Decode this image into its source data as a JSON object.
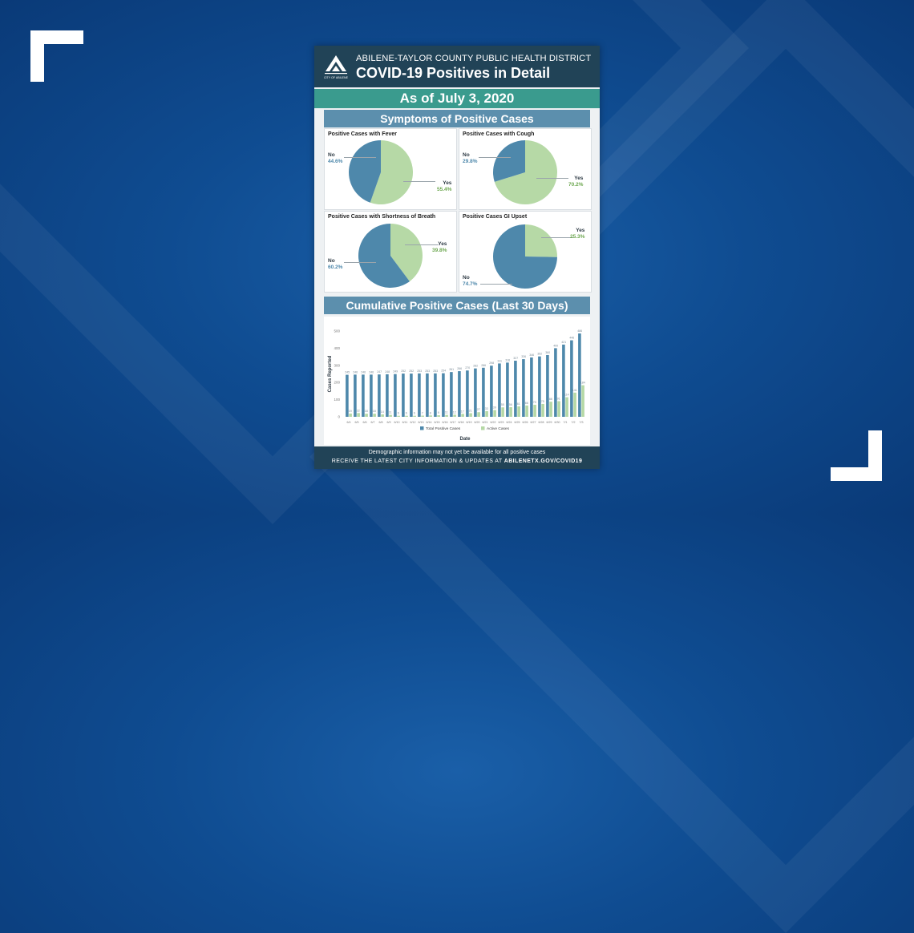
{
  "poster": {
    "org_name": "ABILENE-TAYLOR COUNTY PUBLIC HEALTH DISTRICT",
    "title": "COVID-19 Positives in Detail",
    "logo_text": "CITY OF ABILENE",
    "date_label": "As of July 3, 2020",
    "symptoms_heading": "Symptoms of Positive Cases",
    "cumulative_heading": "Cumulative Positive Cases (Last 30 Days)",
    "footer_note": "Demographic information may not yet be available for all positive cases",
    "footer_cta_prefix": "RECEIVE THE LATEST CITY INFORMATION & UPDATES AT",
    "footer_cta_url": "ABILENETX.GOV/COVID19"
  },
  "colors": {
    "background": "#0f4c91",
    "header": "#214357",
    "date_band": "#3a9b8e",
    "section_banner": "#5c8fad",
    "no_blue": "#4e88ab",
    "yes_green": "#b6d9a6",
    "total_bar": "#4e88ab",
    "active_bar": "#b6d9a6"
  },
  "chart_data": [
    {
      "type": "pie",
      "title": "Positive Cases with Fever",
      "slices": [
        {
          "label": "No",
          "value": 44.6,
          "display": "44.6%"
        },
        {
          "label": "Yes",
          "value": 55.4,
          "display": "55.4%"
        }
      ]
    },
    {
      "type": "pie",
      "title": "Positive Cases with Cough",
      "slices": [
        {
          "label": "No",
          "value": 29.8,
          "display": "29.8%"
        },
        {
          "label": "Yes",
          "value": 70.2,
          "display": "70.2%"
        }
      ]
    },
    {
      "type": "pie",
      "title": "Positive Cases with Shortness of Breath",
      "slices": [
        {
          "label": "No",
          "value": 60.2,
          "display": "60.2%"
        },
        {
          "label": "Yes",
          "value": 39.8,
          "display": "39.8%"
        }
      ]
    },
    {
      "type": "pie",
      "title": "Positive Cases GI Upset",
      "slices": [
        {
          "label": "No",
          "value": 74.7,
          "display": "74.7%"
        },
        {
          "label": "Yes",
          "value": 25.3,
          "display": "25.3%"
        }
      ]
    },
    {
      "type": "bar",
      "xlabel": "Date",
      "ylabel": "Cases Reported",
      "ylim": [
        0,
        500
      ],
      "yticks": [
        0,
        100,
        200,
        300,
        400,
        500
      ],
      "categories": [
        "6/4",
        "6/5",
        "6/6",
        "6/7",
        "6/8",
        "6/9",
        "6/10",
        "6/11",
        "6/12",
        "6/13",
        "6/14",
        "6/15",
        "6/16",
        "6/17",
        "6/18",
        "6/19",
        "6/20",
        "6/21",
        "6/22",
        "6/23",
        "6/24",
        "6/25",
        "6/26",
        "6/27",
        "6/28",
        "6/29",
        "6/30",
        "7/1",
        "7/2",
        "7/3"
      ],
      "series": [
        {
          "name": "Total Positive Cases",
          "values": [
            245,
            246,
            246,
            246,
            247,
            248,
            249,
            252,
            252,
            253,
            253,
            253,
            254,
            261,
            266,
            270,
            282,
            286,
            298,
            311,
            316,
            327,
            336,
            346,
            352,
            360,
            400,
            421,
            446,
            486
          ]
        },
        {
          "name": "Active Cases",
          "values": [
            19,
            22,
            18,
            18,
            14,
            11,
            6,
            6,
            6,
            7,
            8,
            9,
            11,
            12,
            17,
            21,
            27,
            33,
            39,
            55,
            56,
            61,
            66,
            70,
            75,
            88,
            91,
            114,
            141,
            184
          ]
        }
      ],
      "legend": "bottom",
      "grid": false
    }
  ]
}
